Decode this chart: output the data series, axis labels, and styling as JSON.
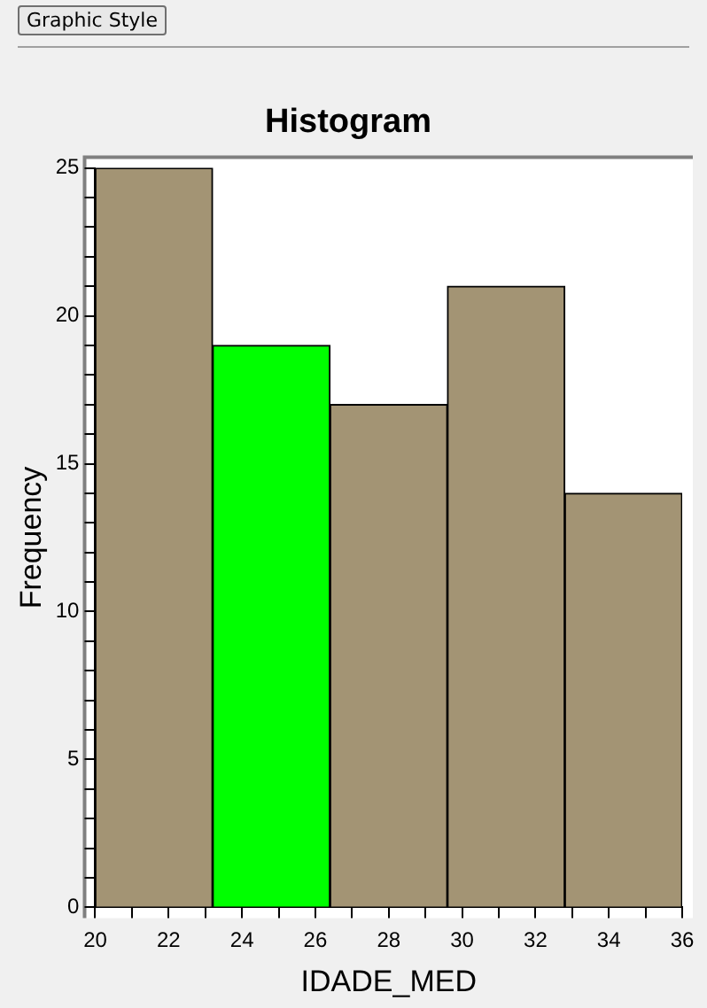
{
  "chart_data": {
    "type": "histogram",
    "title": "Histogram",
    "xlabel": "IDADE_MED",
    "ylabel": "Frequency",
    "annotations": [
      "Graphic Style"
    ],
    "bins": [
      20,
      23.2,
      26.4,
      29.6,
      32.8,
      36
    ],
    "values": [
      25,
      19,
      17,
      21,
      14
    ],
    "colors": [
      "#a39474",
      "#00ff00",
      "#a39474",
      "#a39474",
      "#a39474"
    ],
    "xlim": [
      20,
      36
    ],
    "xticks": [
      20,
      {
        "value": 21,
        "label": null
      },
      22,
      {
        "value": 23,
        "label": null
      },
      24,
      {
        "value": 25,
        "label": null
      },
      26,
      {
        "value": 27,
        "label": null
      },
      28,
      {
        "value": 29,
        "label": null
      },
      30,
      {
        "value": 31,
        "label": null
      },
      32,
      {
        "value": 33,
        "label": null
      },
      34,
      {
        "value": 35,
        "label": null
      },
      36
    ],
    "ylim": [
      0,
      25
    ],
    "yticks": [
      0,
      {
        "value": 1,
        "label": null
      },
      {
        "value": 2,
        "label": null
      },
      {
        "value": 3,
        "label": null
      },
      {
        "value": 4,
        "label": null
      },
      5,
      {
        "value": 6,
        "label": null
      },
      {
        "value": 7,
        "label": null
      },
      {
        "value": 8,
        "label": null
      },
      {
        "value": 9,
        "label": null
      },
      10,
      {
        "value": 11,
        "label": null
      },
      {
        "value": 12,
        "label": null
      },
      {
        "value": 13,
        "label": null
      },
      {
        "value": 14,
        "label": null
      },
      15,
      {
        "value": 16,
        "label": null
      },
      {
        "value": 17,
        "label": null
      },
      {
        "value": 18,
        "label": null
      },
      {
        "value": 19,
        "label": null
      },
      20,
      {
        "value": 21,
        "label": null
      },
      {
        "value": 22,
        "label": null
      },
      {
        "value": 23,
        "label": null
      },
      {
        "value": 24,
        "label": null
      },
      25
    ],
    "grid": false,
    "legend": false
  }
}
